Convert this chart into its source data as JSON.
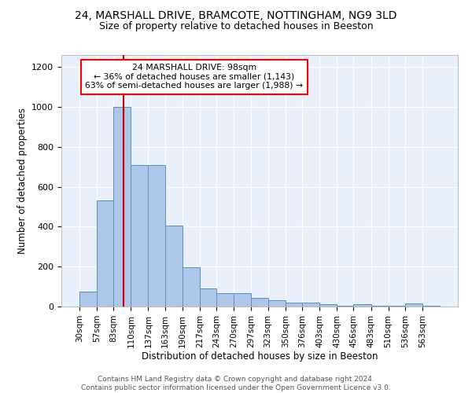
{
  "title_line1": "24, MARSHALL DRIVE, BRAMCOTE, NOTTINGHAM, NG9 3LD",
  "title_line2": "Size of property relative to detached houses in Beeston",
  "xlabel": "Distribution of detached houses by size in Beeston",
  "ylabel": "Number of detached properties",
  "bar_color": "#aec6e8",
  "bar_edge_color": "#5a8fc2",
  "bg_color": "#eaf0fb",
  "annotation_text": "24 MARSHALL DRIVE: 98sqm\n← 36% of detached houses are smaller (1,143)\n63% of semi-detached houses are larger (1,988) →",
  "vline_x": 98,
  "vline_color": "#cc0000",
  "categories": [
    "30sqm",
    "57sqm",
    "83sqm",
    "110sqm",
    "137sqm",
    "163sqm",
    "190sqm",
    "217sqm",
    "243sqm",
    "270sqm",
    "297sqm",
    "323sqm",
    "350sqm",
    "376sqm",
    "403sqm",
    "430sqm",
    "456sqm",
    "483sqm",
    "510sqm",
    "536sqm",
    "563sqm"
  ],
  "bin_edges": [
    30,
    57,
    83,
    110,
    137,
    163,
    190,
    217,
    243,
    270,
    297,
    323,
    350,
    376,
    403,
    430,
    456,
    483,
    510,
    536,
    563,
    590
  ],
  "values": [
    75,
    530,
    1000,
    710,
    710,
    407,
    198,
    90,
    65,
    65,
    43,
    30,
    18,
    18,
    10,
    5,
    10,
    5,
    5,
    15,
    5
  ],
  "ylim": [
    0,
    1260
  ],
  "footer": "Contains HM Land Registry data © Crown copyright and database right 2024.\nContains public sector information licensed under the Open Government Licence v3.0."
}
